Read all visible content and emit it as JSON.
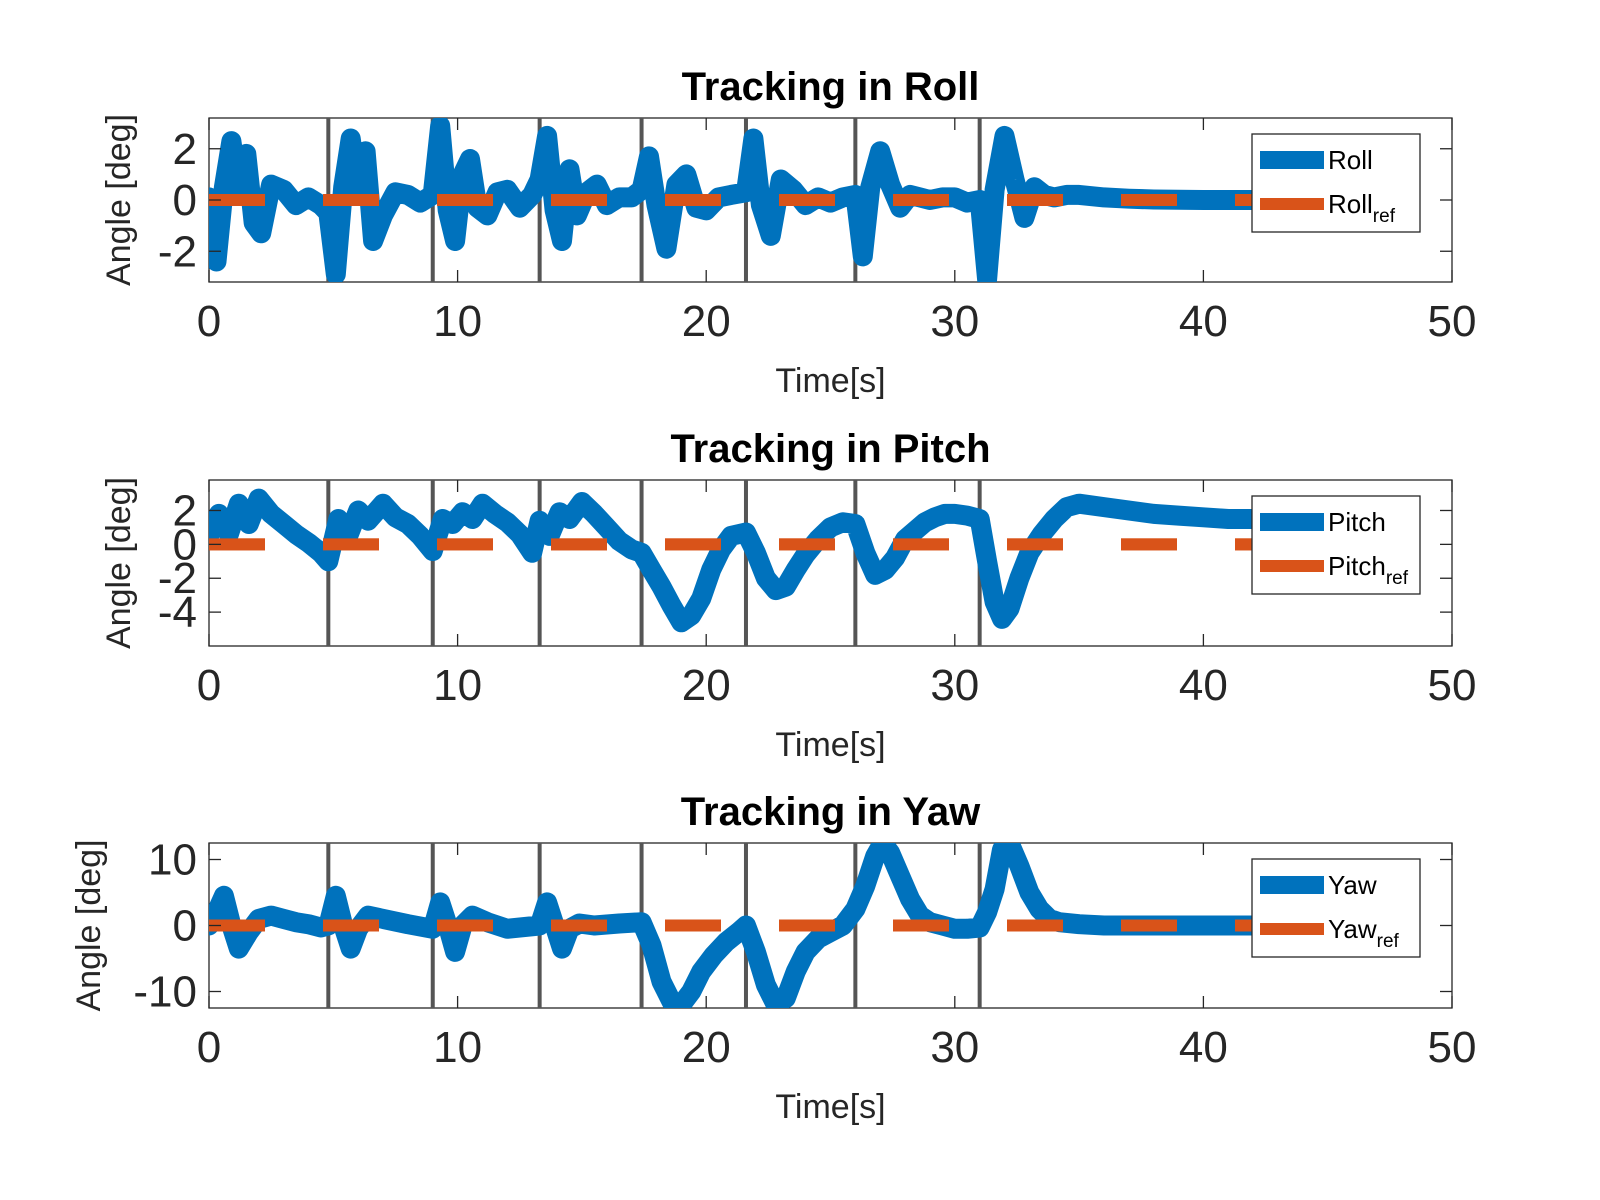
{
  "colors": {
    "signal": "#0072BD",
    "reference": "#D95319",
    "event_line": "#555555",
    "axes": "#262626"
  },
  "chart_data": [
    {
      "type": "line",
      "title": "Tracking in Roll",
      "xlabel": "Time[s]",
      "ylabel": "Angle [deg]",
      "xlim": [
        0,
        50
      ],
      "ylim": [
        -3.2,
        3.2
      ],
      "xticks": [
        0,
        10,
        20,
        30,
        40,
        50
      ],
      "xtick_labels": [
        "0",
        "10",
        "20",
        "30",
        "40",
        "50"
      ],
      "yticks": [
        -2,
        0,
        2
      ],
      "ytick_labels": [
        "-2",
        "0",
        "2"
      ],
      "legend_position": "top-right",
      "legend": [
        {
          "name": "Roll",
          "sub": ""
        },
        {
          "name": "Roll",
          "sub": "ref"
        }
      ],
      "event_lines_x": [
        4.8,
        9.0,
        13.3,
        17.4,
        21.6,
        26.0,
        31.0
      ],
      "series": [
        {
          "name": "Roll",
          "x": [
            0,
            0.3,
            0.6,
            0.9,
            1.2,
            1.5,
            1.8,
            2.1,
            2.5,
            3.0,
            3.5,
            4.0,
            4.5,
            4.8,
            5.1,
            5.4,
            5.7,
            6.0,
            6.3,
            6.6,
            7.0,
            7.5,
            8.0,
            8.5,
            9.0,
            9.3,
            9.6,
            9.9,
            10.2,
            10.5,
            10.8,
            11.2,
            11.6,
            12.0,
            12.5,
            13.0,
            13.3,
            13.6,
            13.9,
            14.2,
            14.5,
            14.8,
            15.2,
            15.6,
            16.0,
            16.5,
            17.0,
            17.4,
            17.7,
            18.0,
            18.4,
            18.8,
            19.2,
            19.6,
            20.0,
            20.5,
            21.0,
            21.6,
            21.9,
            22.2,
            22.6,
            23.0,
            23.5,
            24.0,
            24.5,
            25.0,
            25.5,
            26.0,
            26.3,
            26.6,
            27.0,
            27.4,
            27.8,
            28.2,
            28.6,
            29.0,
            29.5,
            30.0,
            30.5,
            31.0,
            31.3,
            31.6,
            32.0,
            32.4,
            32.8,
            33.2,
            33.6,
            34.0,
            34.5,
            35.0,
            36.0,
            37.0,
            38.0,
            40.0,
            42.0,
            43.5
          ],
          "y": [
            0.1,
            -2.4,
            0.5,
            2.3,
            0.2,
            1.8,
            -0.9,
            -1.3,
            0.6,
            0.4,
            -0.2,
            0.1,
            -0.2,
            -0.5,
            -2.9,
            0.5,
            2.4,
            0.3,
            1.9,
            -1.6,
            -0.6,
            0.3,
            0.2,
            -0.1,
            0.2,
            2.9,
            -0.4,
            -1.6,
            1.0,
            1.6,
            -0.3,
            -0.6,
            0.3,
            0.4,
            -0.3,
            0.2,
            0.8,
            2.5,
            -0.4,
            -1.6,
            1.2,
            -0.6,
            0.3,
            0.6,
            -0.2,
            0.1,
            0.1,
            0.4,
            1.7,
            -0.2,
            -1.9,
            0.6,
            1.0,
            -0.3,
            -0.4,
            0.1,
            0.2,
            0.3,
            2.4,
            -0.2,
            -1.4,
            0.8,
            0.4,
            -0.2,
            0.1,
            -0.1,
            0.1,
            0.2,
            -2.2,
            0.5,
            1.9,
            0.6,
            -0.3,
            0.2,
            0.1,
            0.0,
            0.1,
            0.1,
            -0.1,
            0.0,
            -3.1,
            0.4,
            2.5,
            0.8,
            -0.7,
            0.5,
            0.2,
            0.1,
            0.2,
            0.2,
            0.1,
            0.05,
            0.02,
            0.0,
            0.0,
            0.0
          ]
        },
        {
          "name": "Roll",
          "sub": "ref",
          "x": [
            0,
            43.5
          ],
          "y": [
            0,
            0
          ]
        }
      ]
    },
    {
      "type": "line",
      "title": "Tracking in Pitch",
      "xlabel": "Time[s]",
      "ylabel": "Angle [deg]",
      "xlim": [
        0,
        50
      ],
      "ylim": [
        -6.0,
        3.8
      ],
      "xticks": [
        0,
        10,
        20,
        30,
        40,
        50
      ],
      "xtick_labels": [
        "0",
        "10",
        "20",
        "30",
        "40",
        "50"
      ],
      "yticks": [
        -4,
        -2,
        0,
        2
      ],
      "ytick_labels": [
        "-4",
        "-2",
        "0",
        "2"
      ],
      "legend_position": "top-right",
      "legend": [
        {
          "name": "Pitch",
          "sub": ""
        },
        {
          "name": "Pitch",
          "sub": "ref"
        }
      ],
      "event_lines_x": [
        4.8,
        9.0,
        13.3,
        17.4,
        21.6,
        26.0,
        31.0
      ],
      "series": [
        {
          "name": "Pitch",
          "x": [
            0,
            0.4,
            0.8,
            1.2,
            1.6,
            2.0,
            2.5,
            3.0,
            3.5,
            4.0,
            4.5,
            4.8,
            5.2,
            5.6,
            6.0,
            6.4,
            7.0,
            7.5,
            8.0,
            8.5,
            9.0,
            9.4,
            9.8,
            10.2,
            10.6,
            11.0,
            11.5,
            12.0,
            12.5,
            13.0,
            13.3,
            13.7,
            14.1,
            14.5,
            15.0,
            15.5,
            16.0,
            16.5,
            17.0,
            17.4,
            17.8,
            18.2,
            18.6,
            19.0,
            19.4,
            19.8,
            20.2,
            20.6,
            21.0,
            21.6,
            22.0,
            22.4,
            22.8,
            23.2,
            23.6,
            24.0,
            24.5,
            25.0,
            25.5,
            26.0,
            26.4,
            26.8,
            27.2,
            27.6,
            28.0,
            28.4,
            28.8,
            29.2,
            29.6,
            30.0,
            30.5,
            31.0,
            31.3,
            31.6,
            31.9,
            32.2,
            32.6,
            33.0,
            33.5,
            34.0,
            34.5,
            35.0,
            36.0,
            37.0,
            38.0,
            39.0,
            40.0,
            41.0,
            42.0,
            43.5
          ],
          "y": [
            0.5,
            1.8,
            0.6,
            2.4,
            1.2,
            2.7,
            1.8,
            1.2,
            0.6,
            0.1,
            -0.5,
            -1.0,
            1.5,
            0.5,
            2.0,
            1.4,
            2.4,
            1.6,
            1.2,
            0.5,
            -0.4,
            1.5,
            1.2,
            1.9,
            1.5,
            2.4,
            1.8,
            1.3,
            0.6,
            -0.5,
            1.4,
            0.5,
            1.9,
            1.5,
            2.5,
            1.8,
            1.0,
            0.2,
            -0.3,
            -0.5,
            -1.5,
            -2.5,
            -3.6,
            -4.6,
            -4.2,
            -3.2,
            -1.5,
            -0.3,
            0.5,
            0.7,
            -0.5,
            -2.0,
            -2.7,
            -2.5,
            -1.5,
            -0.6,
            0.3,
            1.0,
            1.3,
            1.2,
            -0.5,
            -1.8,
            -1.5,
            -0.8,
            0.3,
            0.8,
            1.3,
            1.6,
            1.8,
            1.8,
            1.7,
            1.5,
            -1.0,
            -3.4,
            -4.4,
            -3.8,
            -2.0,
            -0.5,
            0.6,
            1.5,
            2.2,
            2.4,
            2.2,
            2.0,
            1.8,
            1.7,
            1.6,
            1.5,
            1.5,
            1.5
          ]
        },
        {
          "name": "Pitch",
          "sub": "ref",
          "x": [
            0,
            43.5
          ],
          "y": [
            0,
            0
          ]
        }
      ]
    },
    {
      "type": "line",
      "title": "Tracking in Yaw",
      "xlabel": "Time[s]",
      "ylabel": "Angle [deg]",
      "xlim": [
        0,
        50
      ],
      "ylim": [
        -12.5,
        12.5
      ],
      "xticks": [
        0,
        10,
        20,
        30,
        40,
        50
      ],
      "xtick_labels": [
        "0",
        "10",
        "20",
        "30",
        "40",
        "50"
      ],
      "yticks": [
        -10,
        0,
        10
      ],
      "ytick_labels": [
        "-10",
        "0",
        "10"
      ],
      "legend_position": "top-right",
      "legend": [
        {
          "name": "Yaw",
          "sub": ""
        },
        {
          "name": "Yaw",
          "sub": "ref"
        }
      ],
      "event_lines_x": [
        4.8,
        9.0,
        13.3,
        17.4,
        21.6,
        26.0,
        31.0
      ],
      "series": [
        {
          "name": "Yaw",
          "x": [
            0,
            0.3,
            0.6,
            0.9,
            1.2,
            1.6,
            2.0,
            2.5,
            3.0,
            3.5,
            4.0,
            4.5,
            4.8,
            5.1,
            5.4,
            5.7,
            6.0,
            6.4,
            7.0,
            8.0,
            9.0,
            9.3,
            9.6,
            9.9,
            10.2,
            10.6,
            11.2,
            12.0,
            13.3,
            13.6,
            13.9,
            14.2,
            14.5,
            14.9,
            15.5,
            16.5,
            17.4,
            17.8,
            18.2,
            18.6,
            19.0,
            19.4,
            19.8,
            20.3,
            20.8,
            21.3,
            21.6,
            22.0,
            22.4,
            22.8,
            23.2,
            23.6,
            24.0,
            24.5,
            25.0,
            25.5,
            26.0,
            26.4,
            26.8,
            27.1,
            27.4,
            27.8,
            28.2,
            28.6,
            29.0,
            29.5,
            30.0,
            30.5,
            31.0,
            31.3,
            31.6,
            31.9,
            32.2,
            32.6,
            33.0,
            33.4,
            33.8,
            34.2,
            35.0,
            36.0,
            38.0,
            40.0,
            43.5
          ],
          "y": [
            0.0,
            2.0,
            4.5,
            0.0,
            -3.5,
            -1.0,
            1.0,
            1.5,
            1.0,
            0.5,
            0.2,
            -0.3,
            0.0,
            4.5,
            0.0,
            -3.5,
            -0.5,
            1.5,
            1.0,
            0.2,
            -0.5,
            3.5,
            0.0,
            -4.0,
            0.0,
            1.5,
            0.5,
            -0.5,
            0.0,
            3.5,
            0.0,
            -3.5,
            -0.5,
            0.3,
            0.0,
            0.3,
            0.5,
            -3.0,
            -8.5,
            -11.5,
            -12.0,
            -10.0,
            -7.0,
            -4.5,
            -2.5,
            -1.0,
            0.0,
            -4.0,
            -9.0,
            -12.0,
            -11.0,
            -7.0,
            -4.0,
            -2.0,
            -1.0,
            0.0,
            2.5,
            6.0,
            10.5,
            12.5,
            11.0,
            7.5,
            4.0,
            1.5,
            0.5,
            0.0,
            -0.5,
            -0.5,
            -0.3,
            2.0,
            5.5,
            11.5,
            12.5,
            9.0,
            5.0,
            2.5,
            1.0,
            0.5,
            0.2,
            0.0,
            0.0,
            0.0,
            0.0
          ]
        },
        {
          "name": "Yaw",
          "sub": "ref",
          "x": [
            0,
            43.5
          ],
          "y": [
            0,
            0
          ]
        }
      ]
    }
  ]
}
